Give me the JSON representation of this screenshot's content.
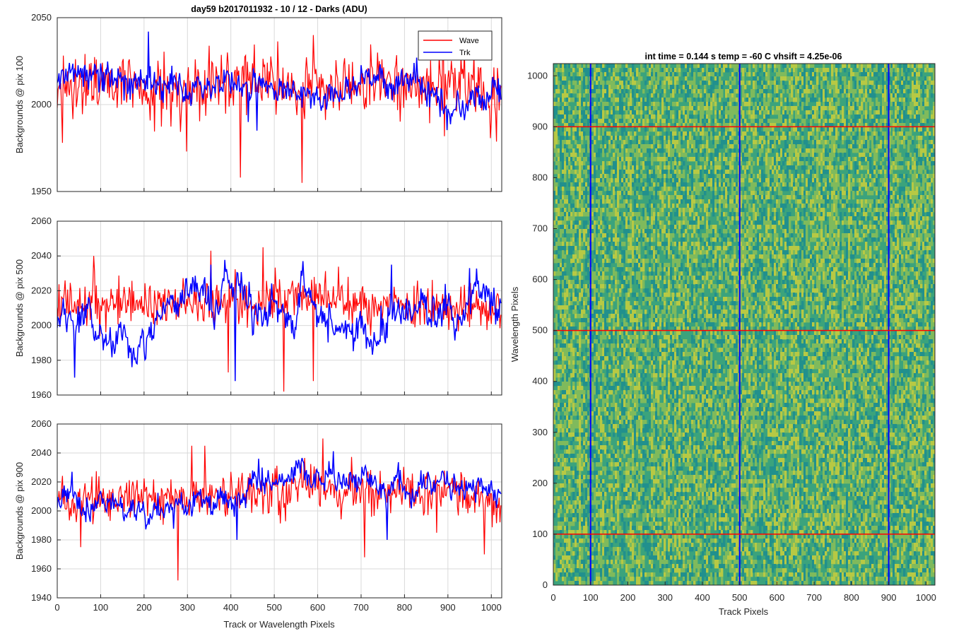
{
  "chart_data": [
    {
      "type": "line",
      "title": "day59 b2017011932 - 10 / 12 - Darks (ADU)",
      "xlabel": "",
      "ylabel": "Backgrounds @ pix 100",
      "xlim": [
        0,
        1024
      ],
      "ylim": [
        1950,
        2050
      ],
      "x_ticks": [
        0,
        100,
        200,
        300,
        400,
        500,
        600,
        700,
        800,
        900,
        1000
      ],
      "y_ticks": [
        1950,
        2000,
        2050
      ],
      "grid": true,
      "legend": {
        "placement": "top-right",
        "entries": [
          "Wave",
          "Trk"
        ]
      },
      "series": [
        {
          "name": "Wave",
          "color": "#ff0000",
          "mean": 2012,
          "noise": 9,
          "drift": 3,
          "spikes": [
            [
              565,
              1955
            ],
            [
              423,
              1958
            ],
            [
              298,
              1973
            ],
            [
              13,
              1978
            ],
            [
              590,
              2040
            ]
          ]
        },
        {
          "name": "Trk",
          "color": "#0000ff",
          "mean": 2012,
          "noise": 4,
          "drift": 6,
          "spikes": [
            [
              210,
              2042
            ],
            [
              440,
              1990
            ],
            [
              460,
              1985
            ]
          ]
        }
      ]
    },
    {
      "type": "line",
      "title": "",
      "xlabel": "",
      "ylabel": "Backgrounds @ pix 500",
      "xlim": [
        0,
        1024
      ],
      "ylim": [
        1960,
        2060
      ],
      "x_ticks": [
        0,
        100,
        200,
        300,
        400,
        500,
        600,
        700,
        800,
        900,
        1000
      ],
      "y_ticks": [
        1960,
        1980,
        2000,
        2020,
        2040,
        2060
      ],
      "grid": true,
      "series": [
        {
          "name": "Wave",
          "color": "#ff0000",
          "mean": 2013,
          "noise": 7,
          "drift": 2,
          "spikes": [
            [
              523,
              1962
            ],
            [
              475,
              2045
            ],
            [
              355,
              2043
            ],
            [
              590,
              1968
            ],
            [
              395,
              1973
            ],
            [
              85,
              2040
            ]
          ]
        },
        {
          "name": "Trk",
          "color": "#0000ff",
          "mean": 2005,
          "noise": 4,
          "drift": 11,
          "spikes": [
            [
              355,
              2035
            ],
            [
              770,
              2035
            ],
            [
              950,
              2033
            ],
            [
              40,
              1970
            ],
            [
              410,
              1968
            ]
          ]
        }
      ]
    },
    {
      "type": "line",
      "title": "",
      "xlabel": "Track or Wavelength Pixels",
      "ylabel": "Backgrounds @ pix 900",
      "xlim": [
        0,
        1024
      ],
      "ylim": [
        1940,
        2060
      ],
      "x_ticks": [
        0,
        100,
        200,
        300,
        400,
        500,
        600,
        700,
        800,
        900,
        1000
      ],
      "y_ticks": [
        1940,
        1960,
        1980,
        2000,
        2020,
        2040,
        2060
      ],
      "grid": true,
      "series": [
        {
          "name": "Wave",
          "color": "#ff0000",
          "mean": 2012,
          "noise": 8,
          "drift": 2,
          "spikes": [
            [
              278,
              1952
            ],
            [
              613,
              2050
            ],
            [
              708,
              1968
            ],
            [
              985,
              1970
            ],
            [
              310,
              2045
            ],
            [
              340,
              2045
            ],
            [
              55,
              1975
            ]
          ]
        },
        {
          "name": "Trk",
          "color": "#0000ff",
          "mean": 2008,
          "noise": 4,
          "drift": 8,
          "spikes": [
            [
              465,
              2036
            ],
            [
              415,
              1980
            ],
            [
              760,
              1980
            ],
            [
              35,
              2027
            ]
          ]
        }
      ]
    },
    {
      "type": "heatmap",
      "title": "int time = 0.144 s   temp = -60 C   vhsift = 4.25e-06",
      "xlabel": "Track Pixels",
      "ylabel": "Wavelength Pixels",
      "xlim": [
        0,
        1024
      ],
      "ylim": [
        0,
        1024
      ],
      "x_ticks": [
        0,
        100,
        200,
        300,
        400,
        500,
        600,
        700,
        800,
        900,
        1000
      ],
      "y_ticks": [
        0,
        100,
        200,
        300,
        400,
        500,
        600,
        700,
        800,
        900,
        1000
      ],
      "colormap": [
        "#21908d",
        "#3ba37c",
        "#7fba5c",
        "#b7c944"
      ],
      "vertical_lines": {
        "x": [
          100,
          500,
          900
        ],
        "color": "#0000ff"
      },
      "horizontal_lines": {
        "y": [
          100,
          500,
          900
        ],
        "color": "#ff0000"
      }
    }
  ]
}
